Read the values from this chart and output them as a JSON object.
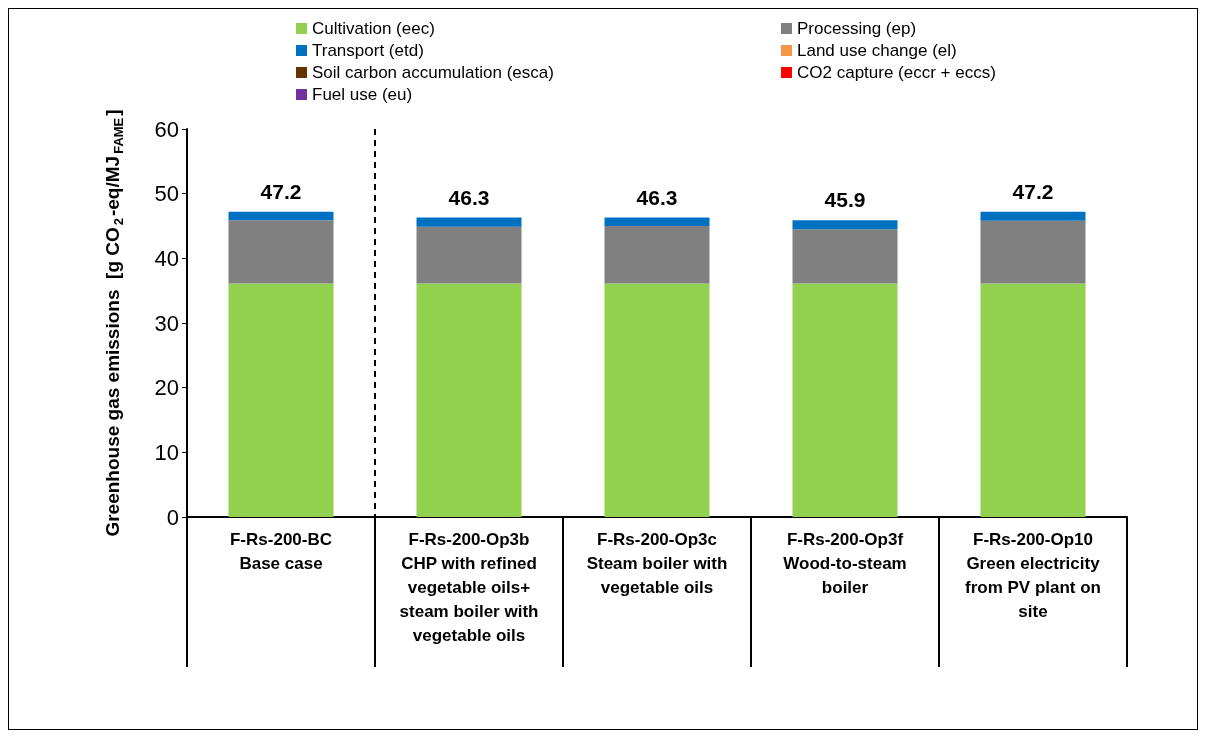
{
  "chart_data": {
    "type": "bar",
    "stacked": true,
    "ylabel": "Greenhouse gas emissions  [g CO$_{2}$-eq/MJ$_{FAME}$]",
    "categories": [
      "F-Rs-200-BC\nBase case",
      "F-Rs-200-Op3b\nCHP with refined\nvegetable oils+\nsteam boiler with\nvegetable oils",
      "F-Rs-200-Op3c\nSteam boiler with\nvegetable oils",
      "F-Rs-200-Op3f\nWood-to-steam\nboiler",
      "F-Rs-200-Op10\nGreen electricity\nfrom PV plant on\nsite"
    ],
    "series": [
      {
        "name": "Cultivation (eec)",
        "color": "#92d050",
        "values": [
          36.1,
          36.1,
          36.1,
          36.1,
          36.1
        ]
      },
      {
        "name": "Processing (ep)",
        "color": "#808080",
        "values": [
          9.8,
          8.8,
          8.9,
          8.4,
          9.7
        ]
      },
      {
        "name": "Transport (etd)",
        "color": "#0070c0",
        "values": [
          1.3,
          1.4,
          1.3,
          1.4,
          1.4
        ]
      },
      {
        "name": "Land use change (el)",
        "color": "#f79646",
        "values": [
          0,
          0,
          0,
          0,
          0
        ]
      },
      {
        "name": "Soil carbon accumulation (esca)",
        "color": "#663300",
        "values": [
          0,
          0,
          0,
          0,
          0
        ]
      },
      {
        "name": "CO2 capture (eccr + eccs)",
        "color": "#ff0000",
        "values": [
          0,
          0,
          0,
          0,
          0
        ]
      },
      {
        "name": "Fuel use (eu)",
        "color": "#7030a0",
        "values": [
          0,
          0,
          0,
          0,
          0
        ]
      }
    ],
    "totals": [
      "47.2",
      "46.3",
      "46.3",
      "45.9",
      "47.2"
    ],
    "ylim": [
      0,
      60
    ],
    "yticks": [
      0,
      10,
      20,
      30,
      40,
      50,
      60
    ],
    "grid": false,
    "legend": "top"
  }
}
